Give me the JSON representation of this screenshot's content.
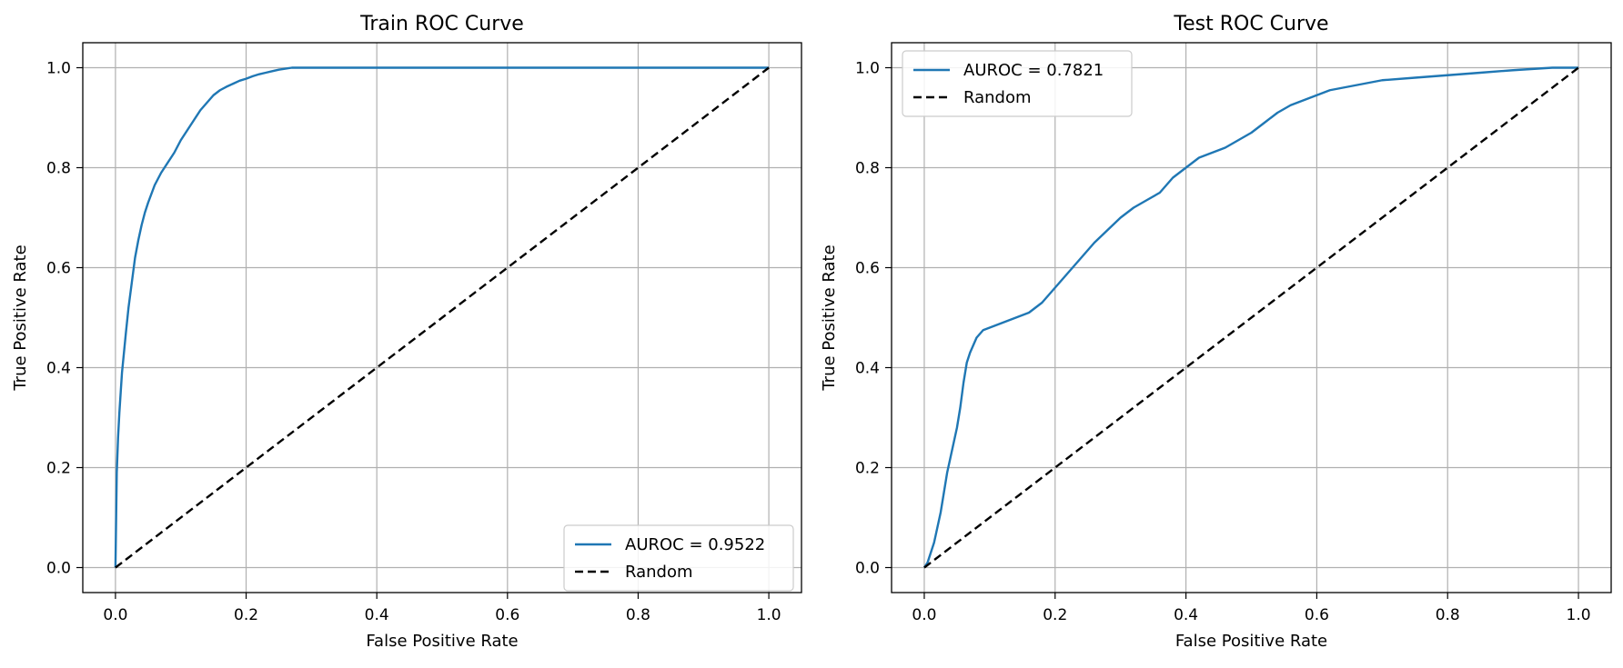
{
  "chart_data": [
    {
      "type": "line",
      "title": "Train ROC Curve",
      "xlabel": "False Positive Rate",
      "ylabel": "True Positive Rate",
      "xlim": [
        -0.05,
        1.05
      ],
      "ylim": [
        -0.05,
        1.05
      ],
      "xticks": [
        "0.0",
        "0.2",
        "0.4",
        "0.6",
        "0.8",
        "1.0"
      ],
      "yticks": [
        "0.0",
        "0.2",
        "0.4",
        "0.6",
        "0.8",
        "1.0"
      ],
      "grid": true,
      "legend_position": "lower-right",
      "series": [
        {
          "name": "AUROC = 0.9522",
          "color": "#1f77b4",
          "style": "solid",
          "x": [
            0.0,
            0.002,
            0.004,
            0.006,
            0.008,
            0.01,
            0.013,
            0.016,
            0.02,
            0.025,
            0.03,
            0.035,
            0.04,
            0.045,
            0.05,
            0.06,
            0.07,
            0.08,
            0.09,
            0.1,
            0.11,
            0.12,
            0.13,
            0.14,
            0.15,
            0.16,
            0.17,
            0.18,
            0.19,
            0.2,
            0.21,
            0.22,
            0.23,
            0.24,
            0.25,
            0.26,
            0.27,
            0.3,
            0.5,
            0.7,
            1.0
          ],
          "y": [
            0.0,
            0.19,
            0.26,
            0.31,
            0.35,
            0.39,
            0.43,
            0.47,
            0.52,
            0.57,
            0.62,
            0.655,
            0.685,
            0.71,
            0.73,
            0.765,
            0.79,
            0.81,
            0.83,
            0.855,
            0.875,
            0.895,
            0.915,
            0.93,
            0.945,
            0.955,
            0.962,
            0.968,
            0.974,
            0.978,
            0.983,
            0.987,
            0.99,
            0.993,
            0.996,
            0.998,
            1.0,
            1.0,
            1.0,
            1.0,
            1.0
          ]
        },
        {
          "name": "Random",
          "color": "#000000",
          "style": "dashed",
          "x": [
            0,
            1
          ],
          "y": [
            0,
            1
          ]
        }
      ]
    },
    {
      "type": "line",
      "title": "Test ROC Curve",
      "xlabel": "False Positive Rate",
      "ylabel": "True Positive Rate",
      "xlim": [
        -0.05,
        1.05
      ],
      "ylim": [
        -0.05,
        1.05
      ],
      "xticks": [
        "0.0",
        "0.2",
        "0.4",
        "0.6",
        "0.8",
        "1.0"
      ],
      "yticks": [
        "0.0",
        "0.2",
        "0.4",
        "0.6",
        "0.8",
        "1.0"
      ],
      "grid": true,
      "legend_position": "upper-left",
      "series": [
        {
          "name": "AUROC = 0.7821",
          "color": "#1f77b4",
          "style": "solid",
          "x": [
            0.0,
            0.005,
            0.01,
            0.015,
            0.02,
            0.025,
            0.03,
            0.035,
            0.04,
            0.045,
            0.05,
            0.055,
            0.06,
            0.065,
            0.07,
            0.08,
            0.09,
            0.1,
            0.12,
            0.14,
            0.16,
            0.18,
            0.2,
            0.22,
            0.24,
            0.26,
            0.28,
            0.3,
            0.32,
            0.34,
            0.36,
            0.38,
            0.4,
            0.42,
            0.44,
            0.46,
            0.48,
            0.5,
            0.52,
            0.54,
            0.56,
            0.58,
            0.6,
            0.62,
            0.64,
            0.66,
            0.7,
            0.75,
            0.8,
            0.85,
            0.9,
            0.96,
            1.0
          ],
          "y": [
            0.0,
            0.01,
            0.03,
            0.05,
            0.08,
            0.11,
            0.15,
            0.19,
            0.22,
            0.25,
            0.28,
            0.32,
            0.37,
            0.41,
            0.43,
            0.46,
            0.475,
            0.48,
            0.49,
            0.5,
            0.51,
            0.53,
            0.56,
            0.59,
            0.62,
            0.65,
            0.675,
            0.7,
            0.72,
            0.735,
            0.75,
            0.78,
            0.8,
            0.82,
            0.83,
            0.84,
            0.855,
            0.87,
            0.89,
            0.91,
            0.925,
            0.935,
            0.945,
            0.955,
            0.96,
            0.965,
            0.975,
            0.98,
            0.985,
            0.99,
            0.995,
            1.0,
            1.0
          ]
        },
        {
          "name": "Random",
          "color": "#000000",
          "style": "dashed",
          "x": [
            0,
            1
          ],
          "y": [
            0,
            1
          ]
        }
      ]
    }
  ]
}
